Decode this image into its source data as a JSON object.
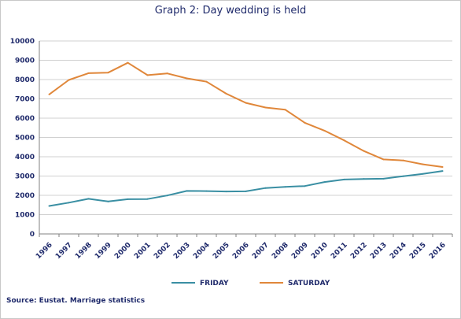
{
  "chart_data": {
    "type": "line",
    "title": "Graph 2: Day wedding is held",
    "categories": [
      "1996",
      "1997",
      "1998",
      "1999",
      "2000",
      "2001",
      "2002",
      "2003",
      "2004",
      "2005",
      "2006",
      "2007",
      "2008",
      "2009",
      "2010",
      "2011",
      "2012",
      "2013",
      "2014",
      "2015",
      "2016"
    ],
    "series": [
      {
        "name": "FRIDAY",
        "color": "#3a8fa3",
        "values": [
          1450,
          1620,
          1820,
          1680,
          1800,
          1810,
          1990,
          2230,
          2220,
          2200,
          2210,
          2380,
          2440,
          2480,
          2690,
          2820,
          2850,
          2860,
          2990,
          3110,
          3260
        ]
      },
      {
        "name": "SATURDAY",
        "color": "#e0873a",
        "values": [
          7230,
          7980,
          8330,
          8360,
          8870,
          8230,
          8320,
          8060,
          7890,
          7270,
          6790,
          6550,
          6440,
          5760,
          5350,
          4850,
          4300,
          3860,
          3810,
          3610,
          3470
        ]
      }
    ],
    "ylim": [
      0,
      10000
    ],
    "yticks": [
      "0",
      "1000",
      "2000",
      "3000",
      "4000",
      "5000",
      "6000",
      "7000",
      "8000",
      "9000",
      "10000"
    ],
    "grid": true,
    "legend": "bottom",
    "xlabel": "",
    "ylabel": ""
  },
  "source": "Source: Eustat. Marriage statistics"
}
